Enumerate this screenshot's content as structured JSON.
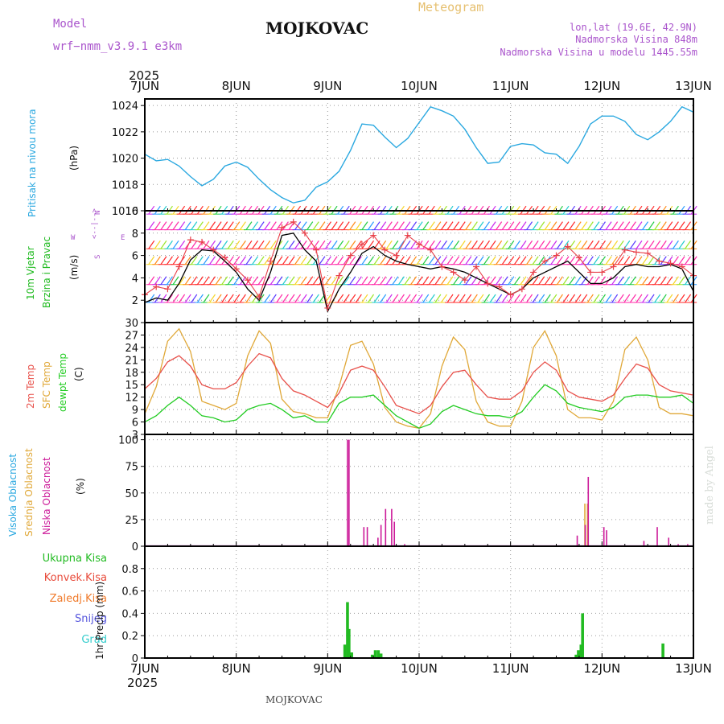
{
  "header": {
    "model_label": "Model",
    "model_name": "wrf−nmm_v3.9.1  e3km",
    "city": "MOJKOVAC",
    "meteogram": "Meteogram",
    "lonlat": "lon,lat (19.6E, 42.9N)",
    "altitude": "Nadmorska Visina 848m",
    "model_altitude": "Nadmorska Visina u modelu 1445.55m",
    "year_top": "2025",
    "year_bottom": "2025",
    "footer_city": "MOJKOVAC",
    "credit": "made by Angel"
  },
  "colors": {
    "pressure": "#2aa8e0",
    "speed": "#000000",
    "gust": "#e8404a",
    "temp2m": "#e8504a",
    "sfc": "#e0a838",
    "dew": "#22cc22",
    "high": "#3399ff",
    "mid": "#e0a838",
    "low": "#cc1a99",
    "total": "#22bb22",
    "conv": "#e84a3a",
    "frz": "#f07a2a",
    "snow": "#5555dd",
    "hail": "#33cccc"
  },
  "chart_data": [
    {
      "type": "line",
      "title": "Pritisak na nivou mora",
      "ylabel": "(hPa)",
      "ylim": [
        1016,
        1024.5
      ],
      "yticks": [
        "1016",
        "1018",
        "1020",
        "1022",
        "1024"
      ],
      "xticks": [
        "7JUN",
        "8JUN",
        "9JUN",
        "10JUN",
        "11JUN",
        "12JUN",
        "13JUN"
      ],
      "x": [
        0,
        3,
        6,
        9,
        12,
        15,
        18,
        21,
        24,
        27,
        30,
        33,
        36,
        39,
        42,
        45,
        48,
        51,
        54,
        57,
        60,
        63,
        66,
        69,
        72,
        75,
        78,
        81,
        84,
        87,
        90,
        93,
        96,
        99,
        102,
        105,
        108,
        111,
        114,
        117,
        120,
        123,
        126,
        129,
        132,
        135,
        138,
        141,
        144
      ],
      "series": [
        {
          "name": "MSLP",
          "values": [
            1020.3,
            1019.8,
            1019.9,
            1019.4,
            1018.6,
            1017.9,
            1018.4,
            1019.4,
            1019.7,
            1019.3,
            1018.4,
            1017.6,
            1017.0,
            1016.6,
            1016.8,
            1017.8,
            1018.2,
            1019.0,
            1020.6,
            1022.6,
            1022.5,
            1021.6,
            1020.8,
            1021.5,
            1022.7,
            1023.9,
            1023.6,
            1023.2,
            1022.2,
            1020.8,
            1019.6,
            1019.7,
            1020.9,
            1021.1,
            1021.0,
            1020.4,
            1020.3,
            1019.6,
            1020.9,
            1022.6,
            1023.2,
            1023.2,
            1022.8,
            1021.8,
            1021.4,
            1022.0,
            1022.8,
            1023.9,
            1023.5
          ]
        }
      ]
    },
    {
      "type": "line",
      "title": "10m Vjetar Brzina i Pravac",
      "ylabel": "(m/s)",
      "ylim": [
        0,
        10
      ],
      "yticks": [
        "2",
        "4",
        "6",
        "8",
        "10"
      ],
      "compass": [
        "N",
        "S",
        "W",
        "E",
        "<--|-->"
      ],
      "x": [
        0,
        3,
        6,
        9,
        12,
        15,
        18,
        21,
        24,
        27,
        30,
        33,
        36,
        39,
        42,
        45,
        48,
        51,
        54,
        57,
        60,
        63,
        66,
        69,
        72,
        75,
        78,
        81,
        84,
        87,
        90,
        93,
        96,
        99,
        102,
        105,
        108,
        111,
        114,
        117,
        120,
        123,
        126,
        129,
        132,
        135,
        138,
        141,
        144
      ],
      "series": [
        {
          "name": "speed",
          "values": [
            1.8,
            2.2,
            2.0,
            3.5,
            5.6,
            6.5,
            6.4,
            5.5,
            4.5,
            3.0,
            2.0,
            4.5,
            7.8,
            8.0,
            6.5,
            5.5,
            1.0,
            3.0,
            4.5,
            6.2,
            6.8,
            6.0,
            5.5,
            5.2,
            5.0,
            4.8,
            5.0,
            4.8,
            4.5,
            4.0,
            3.5,
            3.0,
            2.5,
            3.0,
            4.0,
            4.5,
            5.0,
            5.5,
            4.5,
            3.5,
            3.5,
            4.0,
            5.0,
            5.2,
            5.0,
            5.0,
            5.2,
            4.8,
            2.8
          ]
        },
        {
          "name": "gust",
          "values": [
            2.5,
            3.2,
            3.0,
            5.0,
            7.4,
            7.2,
            6.5,
            5.8,
            4.8,
            3.8,
            2.3,
            5.5,
            8.5,
            9.0,
            8.0,
            6.5,
            1.3,
            4.2,
            6.0,
            7.0,
            7.8,
            6.5,
            6.0,
            7.8,
            7.0,
            6.5,
            5.0,
            4.5,
            3.8,
            5.0,
            3.5,
            3.2,
            2.5,
            3.0,
            4.5,
            5.5,
            6.0,
            6.8,
            5.8,
            4.5,
            4.5,
            5.0,
            6.5,
            6.3,
            6.2,
            5.5,
            5.3,
            5.0,
            4.2
          ]
        }
      ]
    },
    {
      "type": "line",
      "title": "2m Temp / SFC Temp / dewpt Temp",
      "ylabel": "(C)",
      "ylim": [
        3,
        30
      ],
      "yticks": [
        "3",
        "6",
        "9",
        "12",
        "15",
        "18",
        "21",
        "24",
        "27",
        "30"
      ],
      "x": [
        0,
        3,
        6,
        9,
        12,
        15,
        18,
        21,
        24,
        27,
        30,
        33,
        36,
        39,
        42,
        45,
        48,
        51,
        54,
        57,
        60,
        63,
        66,
        69,
        72,
        75,
        78,
        81,
        84,
        87,
        90,
        93,
        96,
        99,
        102,
        105,
        108,
        111,
        114,
        117,
        120,
        123,
        126,
        129,
        132,
        135,
        138,
        141,
        144
      ],
      "series": [
        {
          "name": "2m Temp",
          "values": [
            14.0,
            16.5,
            20.5,
            22.0,
            19.5,
            15.0,
            14.0,
            14.0,
            15.5,
            19.5,
            22.5,
            21.5,
            16.5,
            13.5,
            12.5,
            11.0,
            9.5,
            13.0,
            18.5,
            19.5,
            18.5,
            14.5,
            10.0,
            9.0,
            8.0,
            10.0,
            14.5,
            18.0,
            18.5,
            15.0,
            12.0,
            11.5,
            11.5,
            13.5,
            18.0,
            20.5,
            18.5,
            13.5,
            12.0,
            11.5,
            11.0,
            12.5,
            16.5,
            20.0,
            19.0,
            15.0,
            13.5,
            13.0,
            12.5
          ]
        },
        {
          "name": "SFC Temp",
          "values": [
            8.0,
            14.5,
            25.5,
            28.5,
            23.0,
            11.0,
            10.0,
            9.0,
            10.5,
            22.0,
            28.0,
            25.0,
            11.5,
            8.5,
            8.0,
            7.0,
            7.0,
            14.5,
            24.5,
            25.5,
            20.0,
            9.5,
            6.0,
            5.0,
            4.5,
            8.0,
            19.5,
            26.5,
            23.5,
            11.0,
            6.0,
            5.0,
            5.0,
            11.0,
            24.0,
            28.0,
            22.0,
            9.0,
            7.0,
            7.0,
            6.5,
            11.0,
            23.5,
            26.5,
            21.0,
            9.5,
            8.0,
            8.0,
            7.5
          ]
        },
        {
          "name": "dewpt Temp",
          "values": [
            6.0,
            7.5,
            10.0,
            12.0,
            10.0,
            7.5,
            7.0,
            6.0,
            6.5,
            9.0,
            10.0,
            10.5,
            9.0,
            7.0,
            7.5,
            6.0,
            6.0,
            10.5,
            12.0,
            12.0,
            12.5,
            10.0,
            7.5,
            6.0,
            4.5,
            5.5,
            8.5,
            10.0,
            9.0,
            8.0,
            7.5,
            7.5,
            7.0,
            8.5,
            12.0,
            15.0,
            13.5,
            10.5,
            9.5,
            9.0,
            8.5,
            9.5,
            12.0,
            12.5,
            12.5,
            12.0,
            12.0,
            12.5,
            10.5
          ]
        }
      ]
    },
    {
      "type": "bar",
      "title": "Visoka / Srednja / Niska Oblacnost",
      "ylabel": "(%)",
      "ylim": [
        0,
        105
      ],
      "yticks": [
        "0",
        "25",
        "50",
        "75",
        "100"
      ],
      "series": [
        {
          "name": "Visoka Oblacnost",
          "x": [],
          "values": []
        },
        {
          "name": "Srednja Oblacnost",
          "x": [
            115.5,
            116.2
          ],
          "values": [
            40,
            40
          ]
        },
        {
          "name": "Niska Oblacnost",
          "x": [
            53.2,
            53.6,
            57.5,
            58.4,
            61.2,
            62.0,
            63.2,
            64.8,
            65.5,
            68.2,
            113.5,
            115.6,
            116.4,
            120.5,
            121.2,
            131.0,
            134.5,
            137.5,
            140.0,
            142.5
          ],
          "values": [
            100,
            100,
            18,
            18,
            8,
            20,
            35,
            35,
            23,
            2,
            10,
            20,
            65,
            18,
            15,
            5,
            18,
            8,
            2,
            2
          ]
        }
      ]
    },
    {
      "type": "bar",
      "title": "1hr Precip",
      "ylabel": "1hr Precip (mm)",
      "ylim": [
        0,
        1.0
      ],
      "yticks": [
        "0",
        "0.2",
        "0.4",
        "0.6",
        "0.8"
      ],
      "xticks": [
        "7JUN",
        "8JUN",
        "9JUN",
        "10JUN",
        "11JUN",
        "12JUN",
        "13JUN"
      ],
      "legend": [
        "Ukupna Kisa",
        "Konvek.Kisa",
        "Zaledj.Kisa",
        "Snijeg",
        "Grad"
      ],
      "series": [
        {
          "name": "Ukupna Kisa",
          "x": [
            52.5,
            53.2,
            53.6,
            54.3,
            59.7,
            60.5,
            61.3,
            62.0,
            113.2,
            113.8,
            114.5,
            114.9,
            136.0
          ],
          "values": [
            0.12,
            0.5,
            0.26,
            0.05,
            0.03,
            0.07,
            0.07,
            0.04,
            0.03,
            0.07,
            0.12,
            0.4,
            0.13
          ]
        }
      ]
    }
  ]
}
